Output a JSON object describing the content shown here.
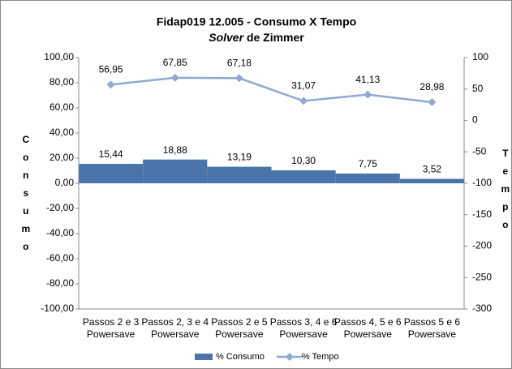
{
  "chart_data": {
    "type": "bar-line",
    "title": "Fidap019 12.005 -  Consumo X Tempo",
    "subtitle": [
      "Solver",
      "de Zimmer"
    ],
    "ylabel": "Consumo",
    "y2label": "Tempo",
    "categories": [
      [
        "Passos 2 e 3",
        "Powersave"
      ],
      [
        "Passos 2, 3 e 4",
        "Powersave"
      ],
      [
        "Passos 2 e 5",
        "Powersave"
      ],
      [
        "Passos 3, 4 e 6",
        "Powersave"
      ],
      [
        "Passos 4, 5 e 6",
        "Powersave"
      ],
      [
        "Passos 5 e 6",
        "Powersave"
      ]
    ],
    "series": [
      {
        "name": "% Consumo",
        "type": "bar",
        "color": "#4a74aa",
        "values": [
          15.44,
          18.88,
          13.19,
          10.3,
          7.75,
          3.52
        ],
        "value_labels": [
          "15,44",
          "18,88",
          "13,19",
          "10,30",
          "7,75",
          "3,52"
        ]
      },
      {
        "name": "% Tempo",
        "type": "line",
        "axis": "y2",
        "color": "#8faad0",
        "values": [
          56.95,
          67.85,
          67.18,
          31.07,
          41.13,
          28.98
        ],
        "value_labels": [
          "56,95",
          "67,85",
          "67,18",
          "31,07",
          "41,13",
          "28,98"
        ]
      }
    ],
    "ylim": [
      -100,
      100
    ],
    "yticks": [
      {
        "value": -100,
        "label": "-100,00"
      },
      {
        "value": -80,
        "label": "-80,00"
      },
      {
        "value": -60,
        "label": "-60,00"
      },
      {
        "value": -40,
        "label": "-40,00"
      },
      {
        "value": -20,
        "label": "-20,00"
      },
      {
        "value": 0,
        "label": "0,00"
      },
      {
        "value": 20,
        "label": "20,00"
      },
      {
        "value": 40,
        "label": "40,00"
      },
      {
        "value": 60,
        "label": "60,00"
      },
      {
        "value": 80,
        "label": "80,00"
      },
      {
        "value": 100,
        "label": "100,00"
      }
    ],
    "y2lim": [
      -300,
      100
    ],
    "y2ticks": [
      -300,
      -250,
      -200,
      -150,
      -100,
      -50,
      0,
      50,
      100
    ],
    "grid": false,
    "legend": "bottom"
  }
}
